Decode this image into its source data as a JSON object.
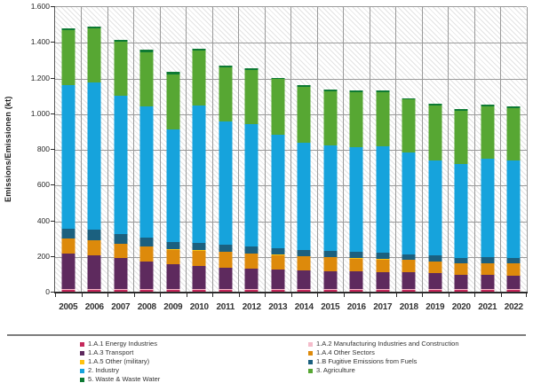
{
  "chart_data": {
    "type": "bar",
    "stacked": true,
    "title": "",
    "xlabel": "",
    "ylabel": "Emissions/Emissionen (kt)",
    "ylim": [
      0,
      1600
    ],
    "ytick_interval": 200,
    "ytick_labels": [
      "0",
      "200",
      "400",
      "600",
      "800",
      "1.000",
      "1.200",
      "1.400",
      "1.600"
    ],
    "grid": true,
    "plot_background": "diagonal-hatch",
    "categories": [
      "2005",
      "2006",
      "2007",
      "2008",
      "2009",
      "2010",
      "2011",
      "2012",
      "2013",
      "2014",
      "2015",
      "2016",
      "2017",
      "2018",
      "2019",
      "2020",
      "2021",
      "2022"
    ],
    "series": [
      {
        "name": "1.A.1 Energy Industries",
        "color": "#C5295B",
        "values": [
          8,
          8,
          8,
          8,
          8,
          8,
          8,
          8,
          8,
          8,
          8,
          8,
          8,
          8,
          8,
          8,
          8,
          8
        ]
      },
      {
        "name": "1.A.2 Manufacturing Industries and Construction",
        "color": "#F4BCCB",
        "values": [
          8,
          8,
          8,
          8,
          8,
          8,
          8,
          8,
          8,
          8,
          8,
          8,
          8,
          8,
          8,
          8,
          8,
          8
        ]
      },
      {
        "name": "1.A.3 Transport",
        "color": "#5E2A5E",
        "values": [
          198,
          187,
          173,
          153,
          137,
          127,
          120,
          115,
          107,
          104,
          99,
          99,
          95,
          91,
          86,
          78,
          80,
          75
        ]
      },
      {
        "name": "1.A.4 Other Sectors",
        "color": "#DD8A0B",
        "values": [
          83,
          86,
          80,
          83,
          83,
          88,
          87,
          83,
          83,
          78,
          78,
          71,
          70,
          70,
          68,
          63,
          64,
          66
        ]
      },
      {
        "name": "1.A.5 Other (military)",
        "color": "#FFC20E",
        "values": [
          1,
          1,
          1,
          1,
          1,
          1,
          1,
          1,
          1,
          1,
          1,
          1,
          1,
          1,
          1,
          1,
          1,
          1
        ]
      },
      {
        "name": "1.B Fugitive Emissions from Fuels",
        "color": "#1B607F",
        "values": [
          54,
          56,
          52,
          52,
          40,
          40,
          40,
          37,
          35,
          37,
          37,
          36,
          36,
          32,
          33,
          29,
          33,
          32
        ]
      },
      {
        "name": "2. Industry",
        "color": "#16A3DC",
        "values": [
          806,
          826,
          778,
          732,
          635,
          770,
          688,
          688,
          636,
          601,
          589,
          589,
          597,
          569,
          533,
          529,
          551,
          547
        ]
      },
      {
        "name": "3. Agriculture",
        "color": "#57A733",
        "values": [
          308,
          303,
          300,
          307,
          308,
          308,
          304,
          300,
          314,
          313,
          304,
          306,
          305,
          298,
          309,
          298,
          295,
          293
        ]
      },
      {
        "name": "5. Waste & Waste Water",
        "color": "#0E7A33",
        "values": [
          12,
          12,
          12,
          12,
          12,
          12,
          10,
          10,
          8,
          8,
          8,
          8,
          8,
          8,
          8,
          8,
          8,
          8
        ]
      }
    ],
    "legend": {
      "position": "bottom",
      "columns": [
        [
          0,
          2,
          4,
          6,
          8
        ],
        [
          1,
          3,
          5,
          7
        ]
      ]
    }
  }
}
